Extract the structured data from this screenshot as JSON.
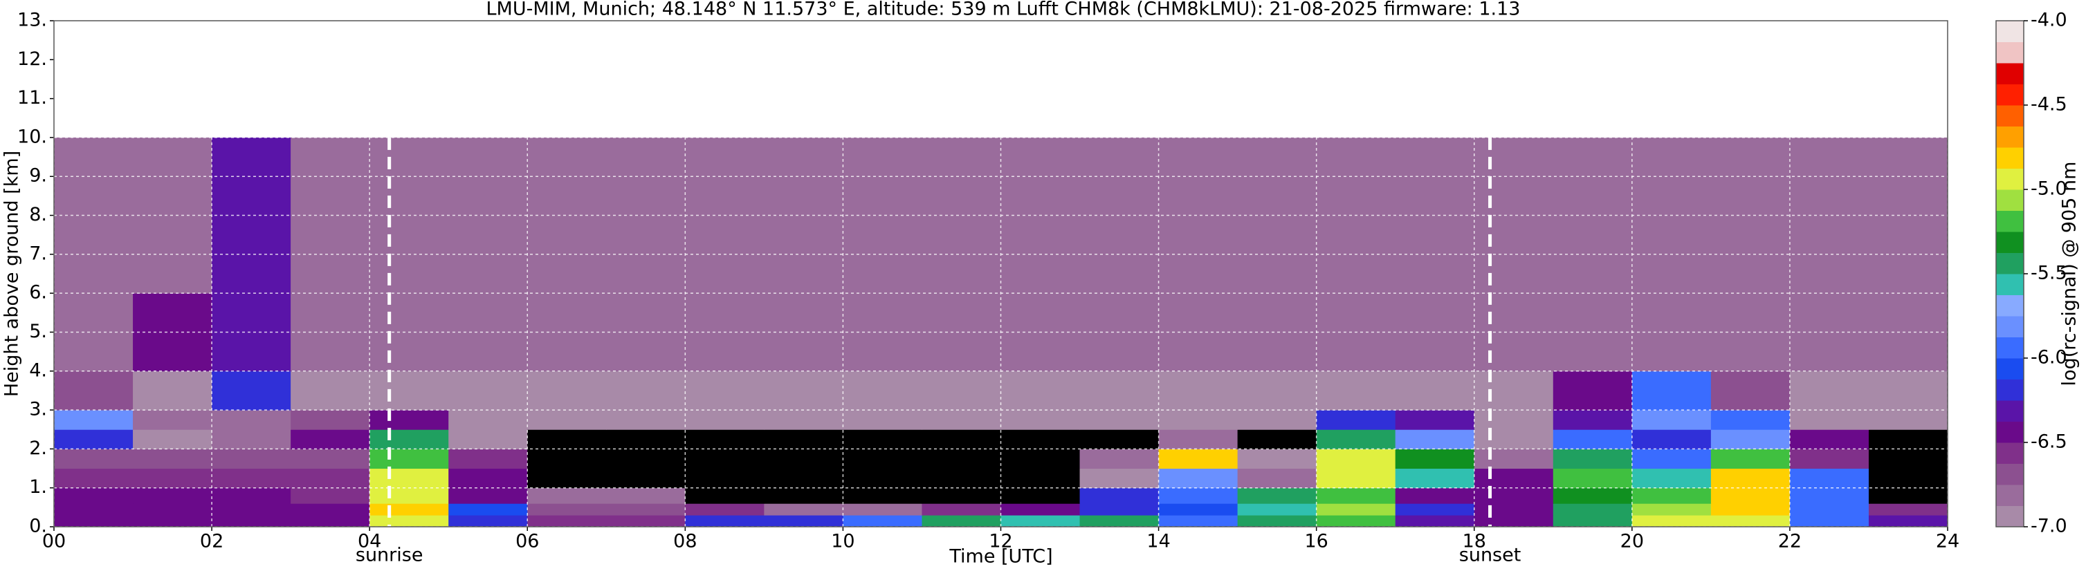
{
  "chart_data": {
    "type": "heatmap",
    "title": "LMU-MIM, Munich; 48.148° N 11.573° E, altitude: 539 m    Lufft CHM8k (CHM8kLMU): 21-08-2025    firmware: 1.13",
    "x_label": "Time [UTC]",
    "y_label": "Height above ground [km]",
    "colorbar_label": "log(rc-signal) @ 905 nm",
    "x_edges": [
      0,
      1,
      2,
      3,
      4,
      5,
      6,
      7,
      8,
      9,
      10,
      11,
      12,
      13,
      14,
      15,
      16,
      17,
      18,
      19,
      20,
      21,
      22,
      23,
      24
    ],
    "y_edges": [
      0,
      0.3,
      0.6,
      1,
      1.5,
      2,
      2.5,
      3,
      4,
      6,
      10
    ],
    "z": [
      [
        -6.4,
        -6.4,
        -6.4,
        -6.4,
        -5.0,
        -6.2,
        -6.6,
        -6.6,
        -6.2,
        -6.2,
        -6.0,
        -5.4,
        -5.6,
        -5.5,
        -6.0,
        -5.5,
        -5.2,
        -6.3,
        -6.4,
        -5.5,
        -5.0,
        -4.9,
        -6.0,
        -6.3
      ],
      [
        -6.5,
        -6.5,
        -6.5,
        -6.5,
        -4.8,
        -6.1,
        -6.7,
        -6.7,
        -6.6,
        -6.8,
        -6.8,
        -6.6,
        -6.5,
        -6.2,
        -6.1,
        -5.6,
        -5.1,
        -6.2,
        -6.4,
        -5.4,
        -5.1,
        -4.8,
        -6.0,
        -6.6
      ],
      [
        -6.5,
        -6.5,
        -6.5,
        -6.6,
        -5.0,
        -6.4,
        -6.8,
        -6.8,
        -7.2,
        -7.2,
        -7.2,
        -7.2,
        -7.2,
        -6.2,
        -6.0,
        -5.4,
        -5.2,
        -6.4,
        -6.4,
        -5.3,
        -5.2,
        -4.8,
        -5.9,
        -7.2
      ],
      [
        -6.6,
        -6.6,
        -6.6,
        -6.6,
        -5.0,
        -6.5,
        -7.2,
        -7.2,
        -7.2,
        -7.2,
        -7.2,
        -7.2,
        -7.2,
        -7.0,
        -5.8,
        -6.8,
        -5.0,
        -5.6,
        -6.5,
        -5.2,
        -5.6,
        -4.8,
        -6.0,
        -7.2
      ],
      [
        -6.7,
        -6.7,
        -6.7,
        -6.7,
        -5.2,
        -6.6,
        -7.2,
        -7.2,
        -7.2,
        -7.2,
        -7.2,
        -7.2,
        -7.2,
        -6.8,
        -4.8,
        -7.0,
        -5.0,
        -5.3,
        -6.8,
        -5.5,
        -6.0,
        -5.2,
        -6.6,
        -7.2
      ],
      [
        -6.2,
        -6.9,
        -6.8,
        -6.5,
        -5.5,
        -7.0,
        -7.2,
        -7.2,
        -7.2,
        -7.2,
        -7.2,
        -7.2,
        -7.2,
        -7.2,
        -6.8,
        -7.2,
        -5.5,
        -5.8,
        -7.0,
        -6.0,
        -6.2,
        -5.8,
        -6.5,
        -7.2
      ],
      [
        -5.8,
        -6.8,
        -6.8,
        -6.7,
        -6.4,
        -7.0,
        -7.0,
        -7.0,
        -7.0,
        -7.0,
        -7.0,
        -7.0,
        -7.0,
        -7.0,
        -7.0,
        -7.0,
        -6.2,
        -6.3,
        -7.0,
        -6.3,
        -5.8,
        -6.0,
        -6.9,
        -7.0
      ],
      [
        -6.7,
        -6.9,
        -6.2,
        -6.9,
        -6.9,
        -6.9,
        -6.9,
        -6.9,
        -6.9,
        -6.9,
        -6.9,
        -6.9,
        -6.9,
        -6.9,
        -6.9,
        -6.9,
        -6.9,
        -6.9,
        -6.9,
        -6.5,
        -6.0,
        -6.7,
        -6.9,
        -6.9
      ],
      [
        -6.8,
        -6.5,
        -6.3,
        -6.8,
        -6.8,
        -6.8,
        -6.8,
        -6.8,
        -6.8,
        -6.8,
        -6.8,
        -6.8,
        -6.8,
        -6.8,
        -6.8,
        -6.8,
        -6.8,
        -6.8,
        -6.8,
        -6.8,
        -6.8,
        -6.8,
        -6.8,
        -6.8
      ],
      [
        -6.8,
        -6.8,
        -6.3,
        -6.8,
        -6.8,
        -6.8,
        -6.8,
        -6.8,
        -6.8,
        -6.8,
        -6.8,
        -6.8,
        -6.8,
        -6.8,
        -6.8,
        -6.8,
        -6.8,
        -6.8,
        -6.8,
        -6.8,
        -6.8,
        -6.8,
        -6.8,
        -6.8
      ]
    ],
    "xlim": [
      0,
      24
    ],
    "ylim": [
      0,
      13
    ],
    "clim": [
      -7,
      -4
    ],
    "xticks": [
      {
        "value": 0,
        "label": "00"
      },
      {
        "value": 2,
        "label": "02"
      },
      {
        "value": 4,
        "label": "04"
      },
      {
        "value": 6,
        "label": "06"
      },
      {
        "value": 8,
        "label": "08"
      },
      {
        "value": 10,
        "label": "10"
      },
      {
        "value": 12,
        "label": "12"
      },
      {
        "value": 14,
        "label": "14"
      },
      {
        "value": 16,
        "label": "16"
      },
      {
        "value": 18,
        "label": "18"
      },
      {
        "value": 20,
        "label": "20"
      },
      {
        "value": 22,
        "label": "22"
      },
      {
        "value": 24,
        "label": "24"
      }
    ],
    "yticks": [
      {
        "value": 0,
        "label": "0."
      },
      {
        "value": 1,
        "label": "1."
      },
      {
        "value": 2,
        "label": "2."
      },
      {
        "value": 3,
        "label": "3."
      },
      {
        "value": 4,
        "label": "4."
      },
      {
        "value": 5,
        "label": "5."
      },
      {
        "value": 6,
        "label": "6."
      },
      {
        "value": 7,
        "label": "7."
      },
      {
        "value": 8,
        "label": "8."
      },
      {
        "value": 9,
        "label": "9."
      },
      {
        "value": 10,
        "label": "10."
      },
      {
        "value": 11,
        "label": "11."
      },
      {
        "value": 12,
        "label": "12."
      },
      {
        "value": 13,
        "label": "13."
      }
    ],
    "cticks": [
      {
        "value": -4,
        "label": "-4.0"
      },
      {
        "value": -4.5,
        "label": "-4.5"
      },
      {
        "value": -5,
        "label": "-5.0"
      },
      {
        "value": -5.5,
        "label": "-5.5"
      },
      {
        "value": -6,
        "label": "-6.0"
      },
      {
        "value": -6.5,
        "label": "-6.5"
      },
      {
        "value": -7,
        "label": "-7.0"
      }
    ],
    "colormap": [
      "#a88aa8",
      "#9a6c9c",
      "#8c5090",
      "#80308a",
      "#6a0a8a",
      "#5a14a8",
      "#3030d8",
      "#1a4cf0",
      "#3a6cff",
      "#6a90ff",
      "#88aaff",
      "#30c0b0",
      "#20a060",
      "#109020",
      "#40c040",
      "#a0e040",
      "#e0f040",
      "#ffd000",
      "#ffa000",
      "#ff6000",
      "#ff2000",
      "#e00000",
      "#f0c4c4",
      "#f0e4e4"
    ],
    "under_color": "#000000",
    "grid": true,
    "annotations": [
      {
        "x": 4.25,
        "label": "sunrise"
      },
      {
        "x": 18.2,
        "label": "sunset"
      }
    ]
  }
}
